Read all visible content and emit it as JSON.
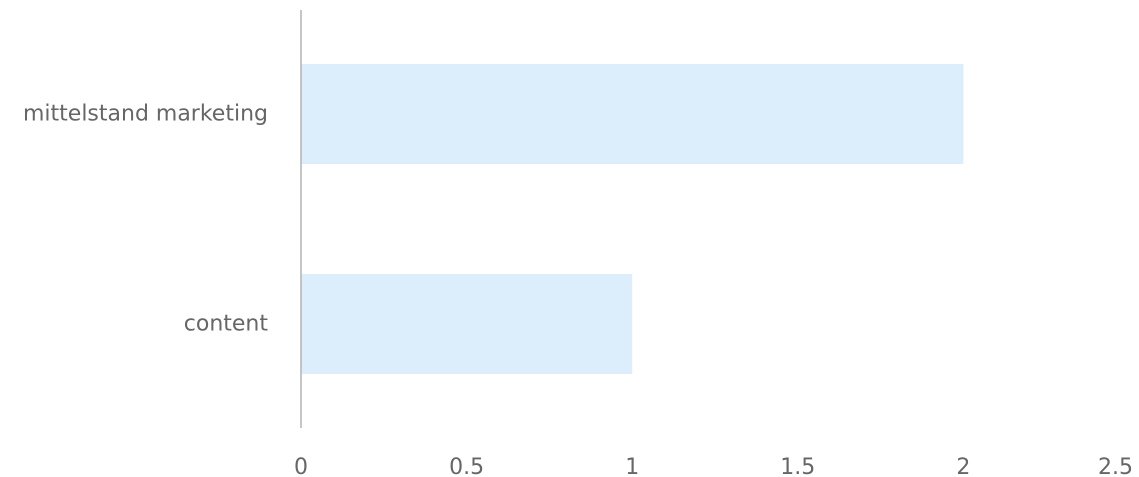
{
  "chart_data": {
    "type": "bar",
    "orientation": "horizontal",
    "categories": [
      "mittelstand marketing",
      "content"
    ],
    "values": [
      2,
      1
    ],
    "title": "",
    "xlabel": "",
    "ylabel": "",
    "xlim": [
      0,
      2.5
    ],
    "x_ticks": [
      "0",
      "0.5",
      "1",
      "1.5",
      "2",
      "2.5"
    ],
    "grid": false,
    "legend": "none",
    "colors": {
      "bar": "#dcedfc",
      "axis": "#b3b3b3",
      "text": "#666666"
    }
  }
}
